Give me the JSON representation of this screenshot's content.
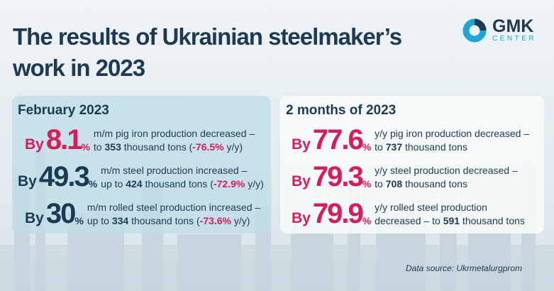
{
  "title": "The results of Ukrainian steelmaker's work in 2023",
  "title_lines": [
    "The results of Ukrainian steelmaker’s",
    "work in 2023"
  ],
  "logo": {
    "name": "GMK",
    "sub": "CENTER"
  },
  "colors": {
    "navy": "#1d3a52",
    "accent": "#d81b5a",
    "logo_blue": "#1fa6d6"
  },
  "february": {
    "heading": "February 2023",
    "rows": [
      {
        "by": "By",
        "value": "8.1",
        "pct": "%",
        "line1": "m/m pig iron production decreased –",
        "pre": "to ",
        "amount": "353",
        "mid": " thousand tons (",
        "yy": "-76.5%",
        "post": " y/y)"
      },
      {
        "by": "By",
        "value": "49.3",
        "pct": "%",
        "line1": "m/m steel production increased –",
        "pre": "up to ",
        "amount": "424",
        "mid": " thousand tons (",
        "yy": "-72.9%",
        "post": " y/y)"
      },
      {
        "by": "By",
        "value": "30",
        "pct": "%",
        "line1": "m/m rolled steel production increased –",
        "pre": "up to ",
        "amount": "334",
        "mid": " thousand tons (",
        "yy": "-73.6%",
        "post": " y/y)"
      }
    ]
  },
  "two_months": {
    "heading": "2 months of 2023",
    "rows": [
      {
        "by": "By",
        "value": "77.6",
        "pct": "%",
        "line1": "y/y pig iron production decreased –",
        "pre": "to ",
        "amount": "737",
        "post": " thousand tons"
      },
      {
        "by": "By",
        "value": "79.3",
        "pct": "%",
        "line1": "y/y steel production decreased –",
        "pre": "to ",
        "amount": "708",
        "post": " thousand tons"
      },
      {
        "by": "By",
        "value": "79.9",
        "pct": "%",
        "line1": "y/y rolled steel production",
        "pre": "decreased – to ",
        "amount": "591",
        "post": " thousand tons"
      }
    ]
  },
  "source": "Data source: Ukrmetalurgprom"
}
